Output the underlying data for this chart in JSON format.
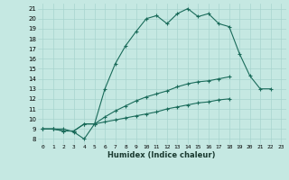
{
  "xlabel": "Humidex (Indice chaleur)",
  "background_color": "#c5e8e2",
  "grid_color": "#a8d4ce",
  "line_color": "#1a6b5a",
  "ylim": [
    7.5,
    21.5
  ],
  "xlim": [
    -0.5,
    23.5
  ],
  "yticks": [
    8,
    9,
    10,
    11,
    12,
    13,
    14,
    15,
    16,
    17,
    18,
    19,
    20,
    21
  ],
  "xticks": [
    0,
    1,
    2,
    3,
    4,
    5,
    6,
    7,
    8,
    9,
    10,
    11,
    12,
    13,
    14,
    15,
    16,
    17,
    18,
    19,
    20,
    21,
    22,
    23
  ],
  "line1_x": [
    0,
    1,
    2,
    3,
    4,
    5,
    6,
    7,
    8,
    9,
    10,
    11,
    12,
    13,
    14,
    15,
    16,
    17,
    18,
    19,
    20,
    21,
    22
  ],
  "line1_y": [
    9.0,
    9.0,
    9.0,
    8.7,
    8.0,
    9.5,
    13.0,
    15.5,
    17.3,
    18.7,
    20.0,
    20.3,
    19.5,
    20.5,
    21.0,
    20.2,
    20.5,
    19.5,
    19.2,
    16.5,
    14.3,
    13.0,
    13.0
  ],
  "line2_x": [
    0,
    1,
    2,
    3,
    4,
    5,
    6,
    7,
    8,
    9,
    10,
    11,
    12,
    13,
    14,
    15,
    16,
    17,
    18,
    19,
    20,
    21,
    22,
    23
  ],
  "line2_y": [
    9.0,
    9.0,
    8.8,
    8.8,
    9.5,
    9.5,
    10.2,
    10.8,
    11.3,
    11.8,
    12.2,
    12.5,
    12.8,
    13.2,
    13.5,
    13.7,
    13.8,
    14.0,
    14.2,
    null,
    null,
    null,
    null,
    null
  ],
  "line3_x": [
    0,
    1,
    2,
    3,
    4,
    5,
    6,
    7,
    8,
    9,
    10,
    11,
    12,
    13,
    14,
    15,
    16,
    17,
    18,
    19,
    20,
    21,
    22,
    23
  ],
  "line3_y": [
    9.0,
    9.0,
    8.8,
    8.8,
    9.5,
    9.5,
    9.7,
    9.9,
    10.1,
    10.3,
    10.5,
    10.7,
    11.0,
    11.2,
    11.4,
    11.6,
    11.7,
    11.9,
    12.0,
    null,
    null,
    null,
    null,
    null
  ]
}
